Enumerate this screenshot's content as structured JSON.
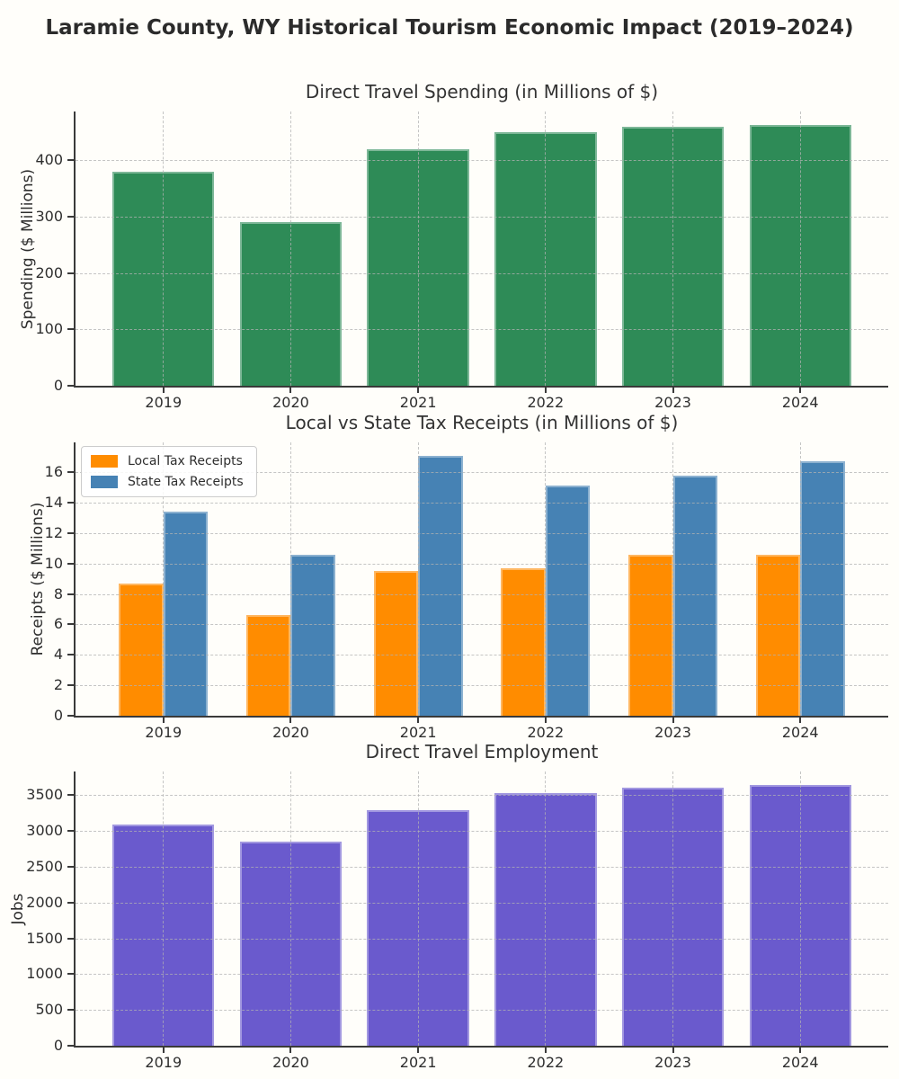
{
  "page": {
    "title": "Laramie County, WY Historical Tourism Economic Impact (2019–2024)",
    "background_color": "#fffefa",
    "text_color": "#2e2e2e",
    "spine_color": "#3a3a3a",
    "grid_style": "dashed"
  },
  "chart_data": [
    {
      "type": "bar",
      "title": "Direct Travel Spending (in Millions of $)",
      "xlabel": "",
      "ylabel": "Spending ($ Millions)",
      "categories": [
        "2019",
        "2020",
        "2021",
        "2022",
        "2023",
        "2024"
      ],
      "values": [
        380,
        290,
        420,
        450,
        460,
        463
      ],
      "color": "#2e8b57",
      "yticks": [
        0,
        100,
        200,
        300,
        400
      ],
      "ylim": [
        0,
        487
      ],
      "grid": true,
      "legend": false
    },
    {
      "type": "bar",
      "title": "Local vs State Tax Receipts (in Millions of $)",
      "xlabel": "",
      "ylabel": "Receipts ($ Millions)",
      "categories": [
        "2019",
        "2020",
        "2021",
        "2022",
        "2023",
        "2024"
      ],
      "series": [
        {
          "name": "Local Tax Receipts",
          "values": [
            8.7,
            6.6,
            9.5,
            9.7,
            10.6,
            10.6
          ],
          "color": "#ff8c00"
        },
        {
          "name": "State Tax Receipts",
          "values": [
            13.4,
            10.6,
            17.1,
            15.1,
            15.8,
            16.7
          ],
          "color": "#4682b4"
        }
      ],
      "yticks": [
        0,
        2,
        4,
        6,
        8,
        10,
        12,
        14,
        16
      ],
      "ylim": [
        0,
        17.96
      ],
      "grid": true,
      "legend": true,
      "legend_position": "upper left"
    },
    {
      "type": "bar",
      "title": "Direct Travel Employment",
      "xlabel": "",
      "ylabel": "Jobs",
      "categories": [
        "2019",
        "2020",
        "2021",
        "2022",
        "2023",
        "2024"
      ],
      "values": [
        3090,
        2850,
        3290,
        3530,
        3610,
        3650
      ],
      "color": "#6a5acd",
      "yticks": [
        0,
        500,
        1000,
        1500,
        2000,
        2500,
        3000,
        3500
      ],
      "ylim": [
        0,
        3833
      ],
      "grid": true,
      "legend": false
    }
  ]
}
